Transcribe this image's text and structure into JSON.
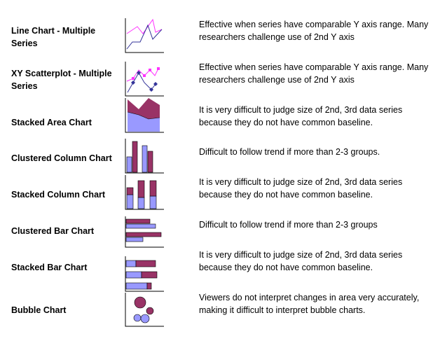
{
  "rows": [
    {
      "name": "Line Chart - Multiple Series",
      "icon": "line-chart-icon",
      "desc": "Effective when series have comparable Y axis range. Many researchers challenge use of 2nd Y axis"
    },
    {
      "name": "XY Scatterplot - Multiple Series",
      "icon": "scatterplot-icon",
      "desc": "Effective when series have comparable Y axis range. Many researchers challenge use of 2nd Y axis"
    },
    {
      "name": "Stacked Area Chart",
      "icon": "stacked-area-chart-icon",
      "desc": "It is very difficult to judge size of 2nd, 3rd data series because they do not have common baseline."
    },
    {
      "name": "Clustered Column Chart",
      "icon": "clustered-column-chart-icon",
      "desc": "Difficult to follow trend  if more than 2-3 groups."
    },
    {
      "name": "Stacked Column Chart",
      "icon": "stacked-column-chart-icon",
      "desc": "It is very difficult to judge size of 2nd, 3rd data series because they do not have common baseline."
    },
    {
      "name": "Clustered Bar Chart",
      "icon": "clustered-bar-chart-icon",
      "desc": "Difficult to follow trend  if more than 2-3 groups"
    },
    {
      "name": "Stacked Bar Chart",
      "icon": "stacked-bar-chart-icon",
      "desc": "It is very difficult to judge size of 2nd, 3rd data series because they do not have common baseline."
    },
    {
      "name": "Bubble Chart",
      "icon": "bubble-chart-icon",
      "desc": "Viewers do not interpret changes in area very accurately, making it difficult to interpret bubble charts."
    }
  ],
  "colors": {
    "maroon": "#993366",
    "lavender": "#9999ff",
    "magenta": "#ff33ff",
    "navy": "#333399",
    "axis": "#000000"
  }
}
